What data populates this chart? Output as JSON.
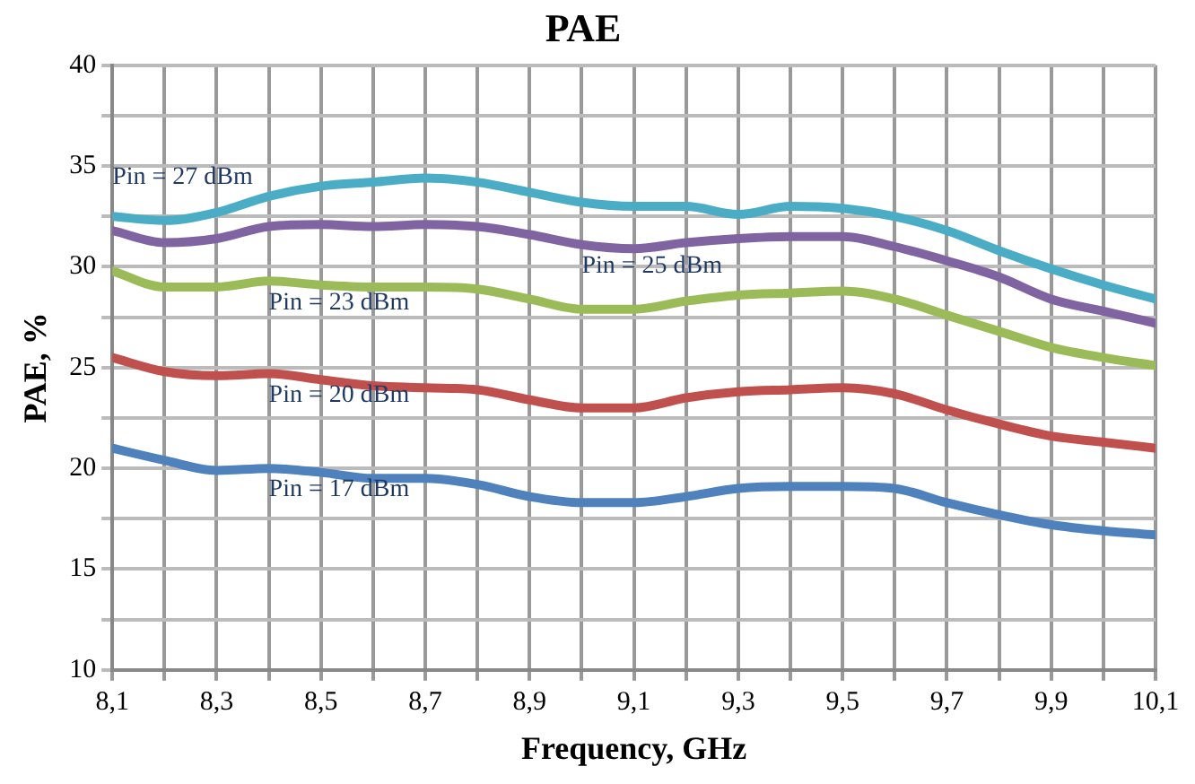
{
  "chart_data": {
    "type": "line",
    "title": "PAE",
    "xlabel": "Frequency, GHz",
    "ylabel": "PAE, %",
    "x": [
      8.1,
      8.2,
      8.3,
      8.4,
      8.5,
      8.6,
      8.7,
      8.8,
      8.9,
      9.0,
      9.1,
      9.2,
      9.3,
      9.4,
      9.5,
      9.6,
      9.7,
      9.8,
      9.9,
      10.0,
      10.1
    ],
    "series": [
      {
        "name": "Pin = 27 dBm",
        "color": "#4bacc6",
        "values": [
          32.5,
          32.3,
          32.7,
          33.5,
          34.0,
          34.2,
          34.4,
          34.2,
          33.7,
          33.2,
          33.0,
          33.0,
          32.6,
          33.0,
          32.9,
          32.5,
          31.8,
          30.8,
          29.9,
          29.1,
          28.4
        ]
      },
      {
        "name": "Pin = 25 dBm",
        "color": "#8064a2",
        "values": [
          31.8,
          31.2,
          31.4,
          32.0,
          32.1,
          32.0,
          32.1,
          32.0,
          31.6,
          31.1,
          30.9,
          31.2,
          31.4,
          31.5,
          31.5,
          31.0,
          30.3,
          29.5,
          28.4,
          27.8,
          27.2
        ]
      },
      {
        "name": "Pin = 23 dBm",
        "color": "#9bbb59",
        "values": [
          29.8,
          29.0,
          29.0,
          29.3,
          29.1,
          29.0,
          29.0,
          28.9,
          28.4,
          27.9,
          27.9,
          28.3,
          28.6,
          28.7,
          28.8,
          28.4,
          27.6,
          26.8,
          26.0,
          25.5,
          25.1
        ]
      },
      {
        "name": "Pin = 20 dBm",
        "color": "#c0504d",
        "values": [
          25.5,
          24.8,
          24.6,
          24.7,
          24.4,
          24.1,
          24.0,
          23.9,
          23.4,
          23.0,
          23.0,
          23.5,
          23.8,
          23.9,
          24.0,
          23.7,
          22.9,
          22.2,
          21.6,
          21.3,
          21.0
        ]
      },
      {
        "name": "Pin = 17 dBm",
        "color": "#4f81bd",
        "values": [
          21.0,
          20.4,
          19.9,
          20.0,
          19.8,
          19.5,
          19.5,
          19.2,
          18.6,
          18.3,
          18.3,
          18.6,
          19.0,
          19.1,
          19.1,
          19.0,
          18.3,
          17.7,
          17.2,
          16.9,
          16.7
        ]
      }
    ],
    "xlim": [
      8.1,
      10.1
    ],
    "xticks": [
      {
        "value": 8.1,
        "label": "8,1"
      },
      {
        "value": 8.2,
        "label": null
      },
      {
        "value": 8.3,
        "label": "8,3"
      },
      {
        "value": 8.4,
        "label": null
      },
      {
        "value": 8.5,
        "label": "8,5"
      },
      {
        "value": 8.6,
        "label": null
      },
      {
        "value": 8.7,
        "label": "8,7"
      },
      {
        "value": 8.8,
        "label": null
      },
      {
        "value": 8.9,
        "label": "8,9"
      },
      {
        "value": 9.0,
        "label": null
      },
      {
        "value": 9.1,
        "label": "9,1"
      },
      {
        "value": 9.2,
        "label": null
      },
      {
        "value": 9.3,
        "label": "9,3"
      },
      {
        "value": 9.4,
        "label": null
      },
      {
        "value": 9.5,
        "label": "9,5"
      },
      {
        "value": 9.6,
        "label": null
      },
      {
        "value": 9.7,
        "label": "9,7"
      },
      {
        "value": 9.8,
        "label": null
      },
      {
        "value": 9.9,
        "label": "9,9"
      },
      {
        "value": 10.0,
        "label": null
      },
      {
        "value": 10.1,
        "label": "10,1"
      }
    ],
    "ylim": [
      10,
      40
    ],
    "yticks": [
      10,
      {
        "value": 12.5,
        "label": null
      },
      15,
      {
        "value": 17.5,
        "label": null
      },
      20,
      {
        "value": 22.5,
        "label": null
      },
      25,
      {
        "value": 27.5,
        "label": null
      },
      30,
      {
        "value": 32.5,
        "label": null
      },
      35,
      {
        "value": 37.5,
        "label": null
      },
      40
    ],
    "grid": true,
    "legend": false,
    "marker": "none",
    "line_style": "solid"
  }
}
